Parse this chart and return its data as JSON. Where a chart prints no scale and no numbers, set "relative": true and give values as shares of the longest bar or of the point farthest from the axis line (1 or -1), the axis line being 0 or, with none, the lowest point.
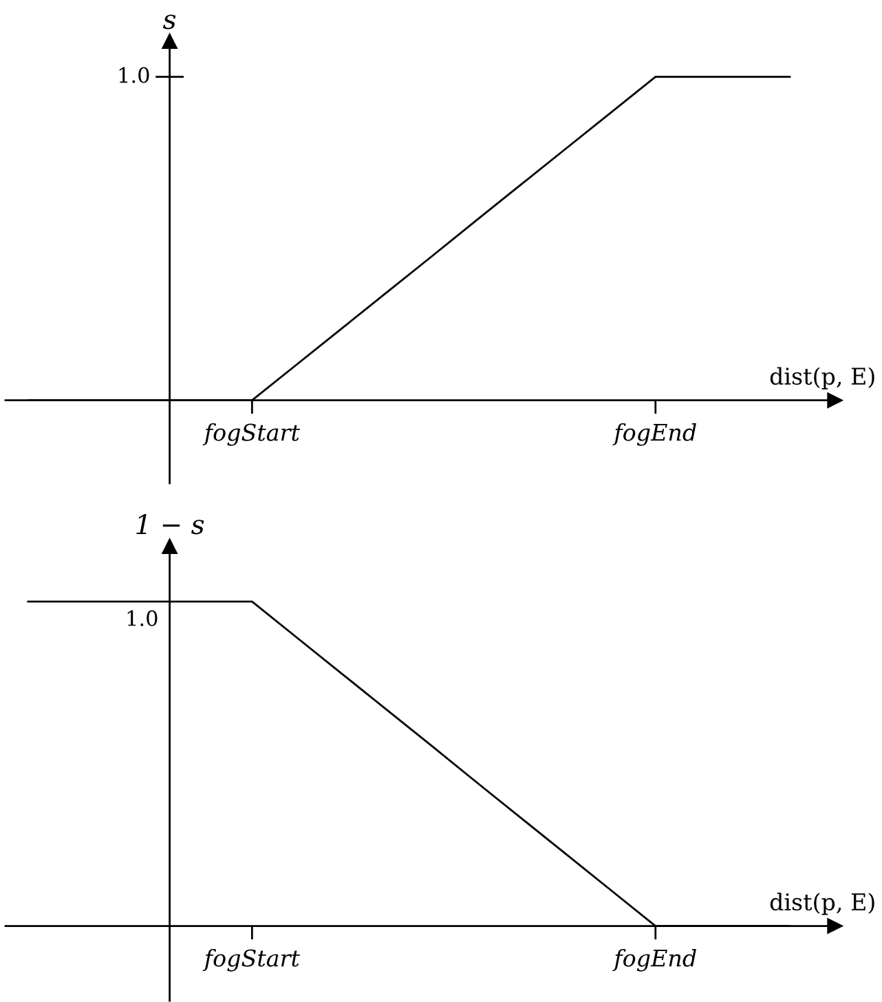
{
  "chart_data": [
    {
      "type": "line",
      "xlabel": "dist(p, E)",
      "ylabel": "s",
      "relative": true,
      "categories": [
        null,
        null,
        null,
        null,
        null,
        "fogStart",
        null,
        null,
        null,
        null,
        null,
        null,
        null,
        null,
        "fogEnd",
        null,
        null,
        null
      ],
      "annotations": [
        "1.0"
      ],
      "series": [
        {
          "color": "#000000",
          "values": [
            0,
            0,
            0,
            0,
            0,
            0,
            0.111,
            0.222,
            0.333,
            0.444,
            0.556,
            0.667,
            0.778,
            0.889,
            1,
            1,
            1,
            1
          ]
        }
      ]
    },
    {
      "type": "line",
      "xlabel": "dist(p, E)",
      "ylabel": "1 − s",
      "relative": true,
      "categories": [
        null,
        null,
        null,
        null,
        null,
        "fogStart",
        null,
        null,
        null,
        null,
        null,
        null,
        null,
        null,
        "fogEnd",
        null,
        null,
        null
      ],
      "annotations": [
        "1.0"
      ],
      "series": [
        {
          "color": "#000000",
          "values": [
            1,
            1,
            1,
            1,
            1,
            1,
            0.889,
            0.778,
            0.667,
            0.556,
            0.444,
            0.333,
            0.222,
            0.111,
            0,
            0,
            0,
            0
          ]
        }
      ]
    }
  ]
}
